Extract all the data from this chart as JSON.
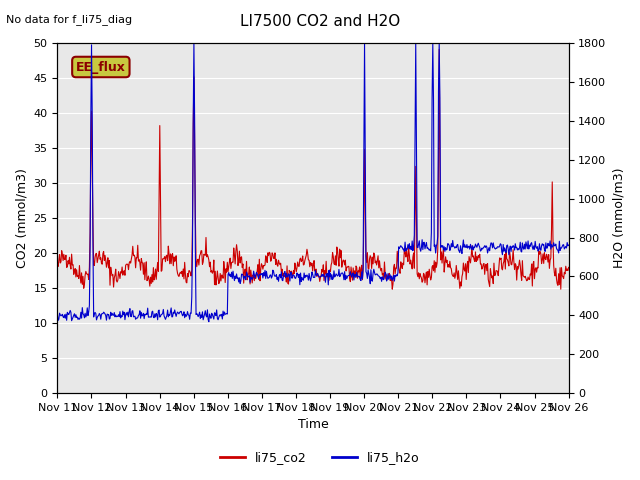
{
  "title": "LI7500 CO2 and H2O",
  "top_left_text": "No data for f_li75_diag",
  "box_label": "EE_flux",
  "xlabel": "Time",
  "ylabel_left": "CO2 (mmol/m3)",
  "ylabel_right": "H2O (mmol/m3)",
  "ylim_left": [
    0,
    50
  ],
  "ylim_right": [
    0,
    1800
  ],
  "xtick_labels": [
    "Nov 11",
    "Nov 12",
    "Nov 13",
    "Nov 14",
    "Nov 15",
    "Nov 16",
    "Nov 17",
    "Nov 18",
    "Nov 19",
    "Nov 20",
    "Nov 21",
    "Nov 22",
    "Nov 23",
    "Nov 24",
    "Nov 25",
    "Nov 26"
  ],
  "background_color": "#e8e8e8",
  "line_co2_color": "#cc0000",
  "line_h2o_color": "#0000cc",
  "legend_co2": "li75_co2",
  "legend_h2o": "li75_h2o",
  "h2o_scale": 36.0,
  "seed": 42
}
